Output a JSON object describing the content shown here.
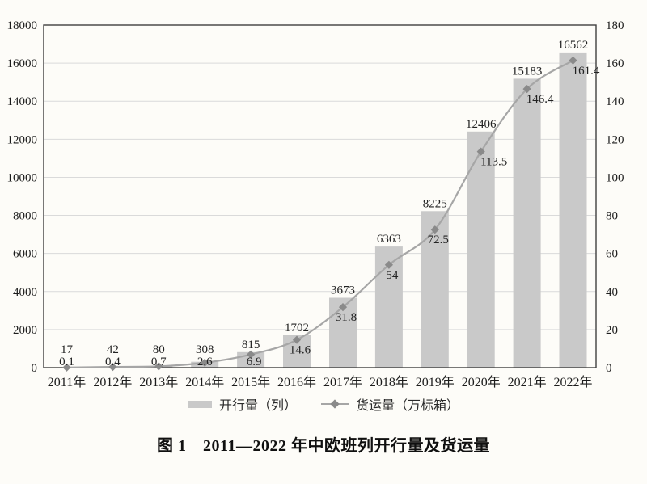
{
  "figure": {
    "caption": "图 1　2011—2022 年中欧班列开行量及货运量"
  },
  "legend": {
    "items": [
      {
        "label": "开行量（列）",
        "marker": "bar-swatch"
      },
      {
        "label": "货运量（万标箱）",
        "marker": "line-diamond"
      }
    ]
  },
  "colors": {
    "background": "#fdfcf8",
    "bar": "#c9c9c9",
    "line": "#a6a6a6",
    "marker": "#8a8a8a",
    "grid": "#dadada",
    "frame": "#3f3f3f",
    "text": "#1f1f1f"
  },
  "chart_data": {
    "type": "bar",
    "subtype": "bar+line combo, dual axis",
    "title": "图 1　2011—2022 年中欧班列开行量及货运量",
    "categories": [
      "2011年",
      "2012年",
      "2013年",
      "2014年",
      "2015年",
      "2016年",
      "2017年",
      "2018年",
      "2019年",
      "2020年",
      "2021年",
      "2022年"
    ],
    "series": [
      {
        "name": "开行量（列）",
        "type": "bar",
        "axis": "left",
        "values": [
          17,
          42,
          80,
          308,
          815,
          1702,
          3673,
          6363,
          8225,
          12406,
          15183,
          16562
        ],
        "labels": [
          "17",
          "42",
          "80",
          "308",
          "815",
          "1702",
          "3673",
          "6363",
          "8225",
          "12406",
          "15183",
          "16562"
        ]
      },
      {
        "name": "货运量（万标箱）",
        "type": "line",
        "axis": "right",
        "marker": "diamond",
        "values": [
          0.1,
          0.4,
          0.7,
          2.6,
          6.9,
          14.6,
          31.8,
          54,
          72.5,
          113.5,
          146.4,
          161.4
        ],
        "labels": [
          "0.1",
          "0.4",
          "0.7",
          "2.6",
          "6.9",
          "14.6",
          "31.8",
          "54",
          "72.5",
          "113.5",
          "146.4",
          "161.4"
        ]
      }
    ],
    "left_axis": {
      "min": 0,
      "max": 18000,
      "step": 2000,
      "ticks": [
        "0",
        "2000",
        "4000",
        "6000",
        "8000",
        "10000",
        "12000",
        "14000",
        "16000",
        "18000"
      ]
    },
    "right_axis": {
      "min": 0,
      "max": 180,
      "step": 20,
      "ticks": [
        "0",
        "20",
        "40",
        "60",
        "80",
        "100",
        "120",
        "140",
        "160",
        "180"
      ]
    },
    "grid": true,
    "legend_position": "bottom",
    "xlabel": "",
    "ylabel_left": "开行量（列）",
    "ylabel_right": "货运量（万标箱）"
  }
}
